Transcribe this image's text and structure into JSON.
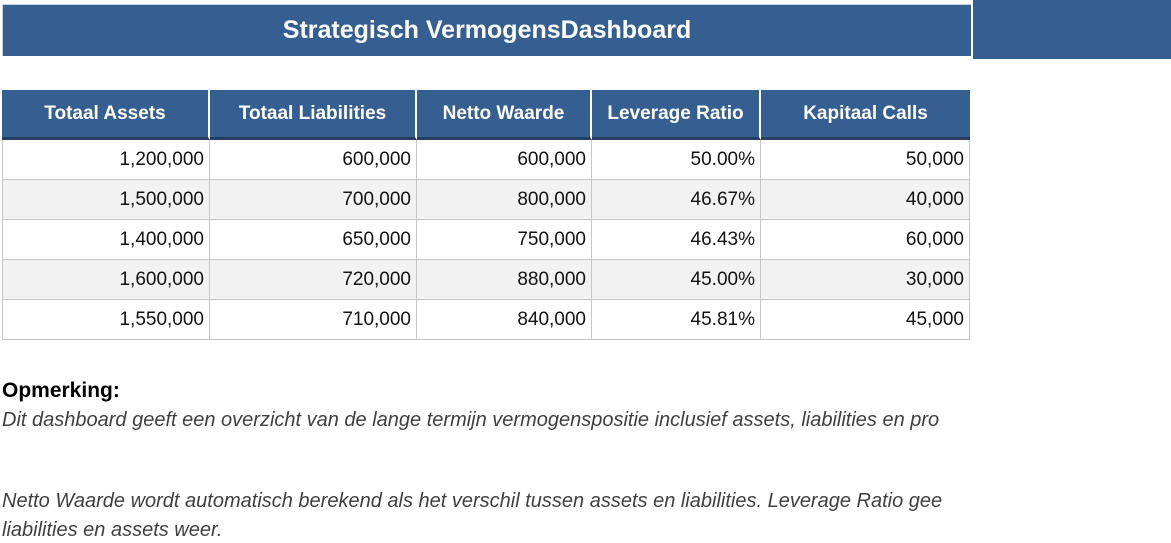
{
  "title": "Strategisch VermogensDashboard",
  "colors": {
    "banner_blue": "#365F91",
    "header_bottom_border": "#243F60",
    "row_alt": "#F2F2F2",
    "gridline": "#C6C6C6",
    "note_text": "#404040"
  },
  "table": {
    "columns": [
      "Totaal Assets",
      "Totaal Liabilities",
      "Netto Waarde",
      "Leverage Ratio",
      "Kapitaal Calls"
    ],
    "rows": [
      [
        "1,200,000",
        "600,000",
        "600,000",
        "50.00%",
        "50,000"
      ],
      [
        "1,500,000",
        "700,000",
        "800,000",
        "46.67%",
        "40,000"
      ],
      [
        "1,400,000",
        "650,000",
        "750,000",
        "46.43%",
        "60,000"
      ],
      [
        "1,600,000",
        "720,000",
        "880,000",
        "45.00%",
        "30,000"
      ],
      [
        "1,550,000",
        "710,000",
        "840,000",
        "45.81%",
        "45,000"
      ]
    ]
  },
  "notes": {
    "heading": "Opmerking:",
    "paragraph1": "Dit dashboard geeft een overzicht van de lange termijn vermogenspositie inclusief assets, liabilities en pro",
    "paragraph2_line1": "Netto Waarde wordt automatisch berekend als het verschil tussen assets en liabilities. Leverage Ratio gee",
    "paragraph2_line2": "liabilities en assets weer."
  }
}
